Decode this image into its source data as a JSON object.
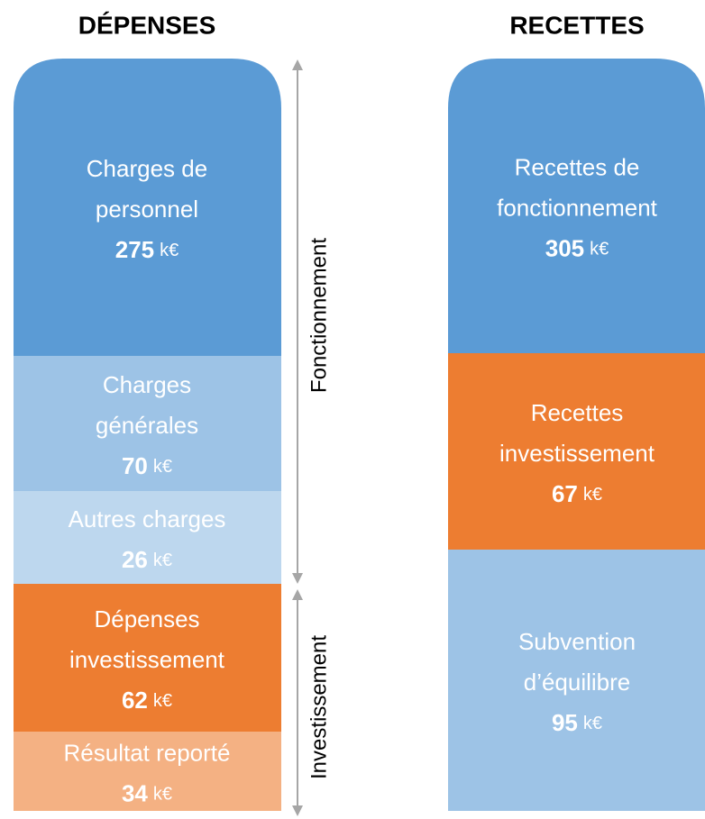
{
  "unit": "k€",
  "columns": [
    {
      "title": "DÉPENSES",
      "blocks": [
        {
          "lines": [
            "Charges de",
            "personnel"
          ],
          "value": 275
        },
        {
          "lines": [
            "Charges",
            "générales"
          ],
          "value": 70
        },
        {
          "lines": [
            "Autres charges"
          ],
          "value": 26
        },
        {
          "lines": [
            "Dépenses",
            "investissement"
          ],
          "value": 62
        },
        {
          "lines": [
            "Résultat reporté"
          ],
          "value": 34
        }
      ]
    },
    {
      "title": "RECETTES",
      "blocks": [
        {
          "lines": [
            "Recettes de",
            "fonctionnement"
          ],
          "value": 305
        },
        {
          "lines": [
            "Recettes",
            "investissement"
          ],
          "value": 67
        },
        {
          "lines": [
            "Subvention",
            "d’équilibre"
          ],
          "value": 95
        }
      ]
    }
  ],
  "sections": [
    "Fonctionnement",
    "Investissement"
  ]
}
